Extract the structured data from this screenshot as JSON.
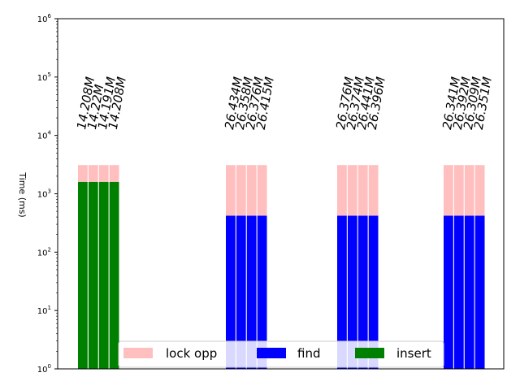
{
  "chart_data": {
    "type": "bar",
    "stacked": true,
    "ylabel": "Time (ms)",
    "yscale": "log",
    "ylim": [
      1,
      1000000
    ],
    "ytick_labels": [
      {
        "base": "10",
        "exp": "0"
      },
      {
        "base": "10",
        "exp": "1"
      },
      {
        "base": "10",
        "exp": "2"
      },
      {
        "base": "10",
        "exp": "3"
      },
      {
        "base": "10",
        "exp": "4"
      },
      {
        "base": "10",
        "exp": "5"
      },
      {
        "base": "10",
        "exp": "6"
      }
    ],
    "grid": false,
    "legend_position": "bottom-center",
    "series": [
      {
        "name": "lock opp",
        "color": "#ffbfbf"
      },
      {
        "name": "find",
        "color": "#0000ff"
      },
      {
        "name": "insert",
        "color": "#008000"
      }
    ],
    "groups": [
      {
        "bars": [
          {
            "label": "14.208M",
            "insert": 1600,
            "lock opp": 1500
          },
          {
            "label": "14.22M",
            "insert": 1600,
            "lock opp": 1500
          },
          {
            "label": "14.191M",
            "insert": 1600,
            "lock opp": 1500
          },
          {
            "label": "14.208M",
            "insert": 1600,
            "lock opp": 1500
          }
        ]
      },
      {
        "bars": [
          {
            "label": "26.434M",
            "find": 420,
            "lock opp": 2680
          },
          {
            "label": "26.358M",
            "find": 420,
            "lock opp": 2680
          },
          {
            "label": "26.376M",
            "find": 420,
            "lock opp": 2680
          },
          {
            "label": "26.415M",
            "find": 420,
            "lock opp": 2680
          }
        ]
      },
      {
        "bars": [
          {
            "label": "26.376M",
            "find": 420,
            "lock opp": 2680
          },
          {
            "label": "26.374M",
            "find": 420,
            "lock opp": 2680
          },
          {
            "label": "26.441M",
            "find": 420,
            "lock opp": 2680
          },
          {
            "label": "26.396M",
            "find": 420,
            "lock opp": 2680
          }
        ]
      },
      {
        "bars": [
          {
            "label": "26.341M",
            "find": 420,
            "lock opp": 2680
          },
          {
            "label": "26.392M",
            "find": 420,
            "lock opp": 2680
          },
          {
            "label": "26.309M",
            "find": 420,
            "lock opp": 2680
          },
          {
            "label": "26.351M",
            "find": 420,
            "lock opp": 2680
          }
        ]
      }
    ]
  }
}
